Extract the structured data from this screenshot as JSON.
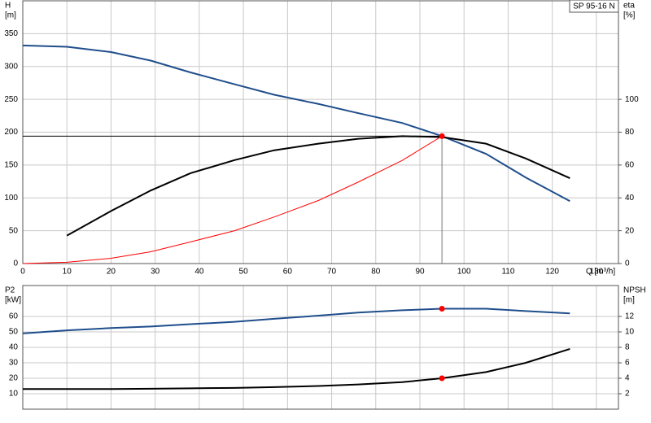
{
  "chart_data": [
    {
      "type": "line",
      "label": "SP 95-16 N",
      "ylabel": "H",
      "yunit": "[m]",
      "y2label": "eta",
      "y2unit": "[%]",
      "xlabel": "Q [m³/h]",
      "xlim": [
        0,
        135
      ],
      "xticks": [
        0,
        10,
        20,
        30,
        40,
        50,
        60,
        70,
        80,
        90,
        100,
        110,
        120,
        130
      ],
      "ylim": [
        0,
        400
      ],
      "yticks": [
        0,
        50,
        100,
        150,
        200,
        250,
        300,
        350
      ],
      "y2lim": [
        0,
        160
      ],
      "y2ticks": [
        0,
        20,
        40,
        60,
        80,
        100
      ],
      "grid": true,
      "series": [
        {
          "color": "#1f4e8c",
          "x": [
            0,
            10,
            20,
            29,
            38,
            48,
            57,
            67,
            76,
            86,
            95,
            105,
            114,
            124
          ],
          "values": [
            332,
            330,
            322,
            309,
            291,
            273,
            257,
            243,
            229,
            214,
            194,
            167,
            131,
            95
          ]
        },
        {
          "color": "#000000",
          "axis": "y2",
          "x": [
            10,
            20,
            29,
            38,
            48,
            57,
            67,
            76,
            86,
            95,
            105,
            114,
            124
          ],
          "values": [
            17,
            32,
            44.5,
            55,
            63,
            69,
            73,
            76,
            77.6,
            77,
            73,
            64,
            52
          ]
        },
        {
          "color": "#ff0000",
          "x": [
            0,
            10,
            20,
            29,
            38,
            48,
            57,
            67,
            76,
            86,
            95
          ],
          "values": [
            0,
            2,
            8,
            18,
            33,
            50,
            71,
            96,
            124,
            157,
            194
          ]
        }
      ],
      "duty_point": {
        "x": 95,
        "y": 194,
        "color": "#ff0000"
      }
    },
    {
      "type": "line",
      "ylabel": "P2",
      "yunit": "[kW]",
      "y2label": "NPSH",
      "y2unit": "[m]",
      "xlim": [
        0,
        135
      ],
      "ylim": [
        0,
        80
      ],
      "yticks": [
        10,
        20,
        30,
        40,
        50,
        60
      ],
      "y2lim": [
        0,
        16
      ],
      "y2ticks": [
        2,
        4,
        6,
        8,
        10,
        12
      ],
      "grid": true,
      "series": [
        {
          "color": "#1f4e8c",
          "x": [
            0,
            10,
            20,
            29,
            38,
            48,
            57,
            67,
            76,
            86,
            95,
            105,
            114,
            124
          ],
          "values": [
            49,
            51,
            52.5,
            53.5,
            55,
            56.5,
            58.5,
            60.5,
            62.5,
            64,
            65,
            65,
            63.5,
            62
          ]
        },
        {
          "color": "#000000",
          "axis": "y2",
          "x": [
            0,
            10,
            20,
            29,
            38,
            48,
            57,
            67,
            76,
            86,
            95,
            105,
            114,
            124
          ],
          "values": [
            2.6,
            2.6,
            2.6,
            2.65,
            2.7,
            2.75,
            2.85,
            3.0,
            3.2,
            3.5,
            4.0,
            4.8,
            6.0,
            7.8
          ]
        }
      ],
      "duty_point": {
        "x": 95,
        "y": 65,
        "y2": 4,
        "color": "#ff0000"
      }
    }
  ]
}
